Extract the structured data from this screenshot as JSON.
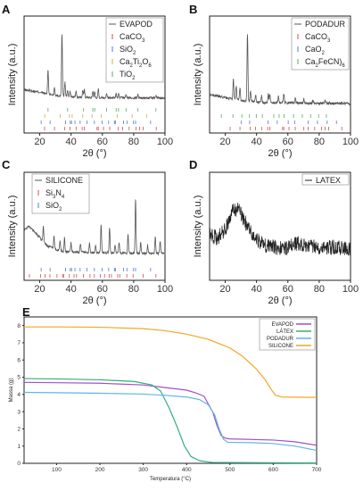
{
  "chart_data": [
    {
      "panel": "A",
      "type": "line",
      "xlabel": "2θ (°)",
      "ylabel": "Intensity (a.u.)",
      "xlim": [
        10,
        100
      ],
      "xticks": [
        20,
        40,
        60,
        80,
        100
      ],
      "legend_position": "top-right",
      "series": [
        {
          "name": "EVAPOD",
          "color": "#555555",
          "style": "line",
          "baseline": [
            [
              10,
              0.16
            ],
            [
              20,
              0.12
            ],
            [
              30,
              0.07
            ],
            [
              45,
              0.04
            ],
            [
              100,
              0.03
            ]
          ],
          "peaks": [
            [
              25.3,
              0.38
            ],
            [
              29.4,
              0.13
            ],
            [
              34.2,
              1.0
            ],
            [
              36.1,
              0.22
            ],
            [
              37.8,
              0.1
            ],
            [
              39.4,
              0.08
            ],
            [
              43.2,
              0.1
            ],
            [
              47.5,
              0.11
            ],
            [
              48.5,
              0.12
            ],
            [
              53.9,
              0.09
            ],
            [
              55.1,
              0.09
            ],
            [
              57.4,
              0.14
            ],
            [
              62.7,
              0.07
            ],
            [
              68.8,
              0.06
            ],
            [
              70.3,
              0.06
            ],
            [
              75.1,
              0.05
            ],
            [
              82.7,
              0.05
            ],
            [
              94.2,
              0.04
            ]
          ]
        },
        {
          "name": "CaCO3",
          "label_html": "CaCO<tspan baseline-shift='sub' font-size='6'>3</tspan>",
          "color": "#d94848",
          "style": "ticks",
          "positions": [
            23.1,
            29.4,
            36.0,
            39.4,
            43.2,
            47.1,
            48.5,
            56.6,
            57.4,
            60.7,
            64.7,
            70.2,
            72.9,
            77.1,
            81.5,
            83.8,
            86.0,
            94.4
          ]
        },
        {
          "name": "SiO2",
          "label_html": "SiO<tspan baseline-shift='sub' font-size='6'>2</tspan>",
          "color": "#4d7cc7",
          "style": "ticks",
          "positions": [
            20.9,
            26.6,
            36.5,
            39.5,
            40.3,
            42.5,
            45.8,
            50.1,
            54.9,
            59.9,
            64.0,
            67.7,
            68.3,
            73.5,
            75.7,
            79.9,
            81.2,
            90.8
          ]
        },
        {
          "name": "Ca2Ti2O6",
          "label_html": "Ca<tspan baseline-shift='sub' font-size='6'>2</tspan>Ti<tspan baseline-shift='sub' font-size='6'>2</tspan>O<tspan baseline-shift='sub' font-size='6'>6</tspan>",
          "color": "#d9a93d",
          "style": "ticks",
          "positions": [
            23.2,
            33.1,
            39.0,
            40.7,
            47.5,
            53.4,
            59.3,
            69.5,
            79.0,
            88.2
          ]
        },
        {
          "name": "TiO2",
          "label_html": "TiO<tspan baseline-shift='sub' font-size='6'>2</tspan>",
          "color": "#55a85f",
          "style": "ticks",
          "positions": [
            25.3,
            37.8,
            48.0,
            53.9,
            55.1,
            62.7,
            68.8,
            70.3,
            75.1,
            82.7,
            94.2
          ]
        }
      ]
    },
    {
      "panel": "B",
      "type": "line",
      "xlabel": "2θ (°)",
      "ylabel": "Intensity (a.u.)",
      "xlim": [
        10,
        100
      ],
      "xticks": [
        20,
        40,
        60,
        80,
        100
      ],
      "legend_position": "top-right",
      "series": [
        {
          "name": "PODADUR",
          "color": "#555555",
          "style": "line",
          "baseline": [
            [
              10,
              0.17
            ],
            [
              20,
              0.12
            ],
            [
              30,
              0.08
            ],
            [
              45,
              0.05
            ],
            [
              100,
              0.04
            ]
          ],
          "peaks": [
            [
              25.2,
              0.28
            ],
            [
              27.0,
              0.2
            ],
            [
              29.4,
              0.18
            ],
            [
              34.2,
              1.0
            ],
            [
              36.1,
              0.16
            ],
            [
              39.4,
              0.1
            ],
            [
              43.2,
              0.1
            ],
            [
              47.5,
              0.12
            ],
            [
              48.5,
              0.13
            ],
            [
              54.0,
              0.1
            ],
            [
              57.4,
              0.13
            ],
            [
              64.7,
              0.07
            ],
            [
              70.2,
              0.06
            ],
            [
              76.0,
              0.05
            ],
            [
              83.9,
              0.05
            ]
          ]
        },
        {
          "name": "CaCO3",
          "label_html": "CaCO<tspan baseline-shift='sub' font-size='6'>3</tspan>",
          "color": "#d94848",
          "style": "ticks",
          "positions": [
            23.1,
            29.4,
            36.0,
            39.4,
            43.2,
            47.1,
            48.5,
            56.6,
            57.4,
            60.7,
            64.7,
            70.2,
            72.9,
            77.1,
            81.5,
            83.8,
            86.0,
            94.4
          ]
        },
        {
          "name": "CaO2",
          "label_html": "CaO<tspan baseline-shift='sub' font-size='6'>2</tspan>",
          "color": "#4d7cc7",
          "style": "ticks",
          "positions": [
            30.1,
            35.6,
            47.3,
            53.2,
            60.2,
            64.3,
            73.0,
            78.9,
            85.1,
            91.0
          ]
        },
        {
          "name": "Ca2FeCN6",
          "label_html": "Ca<tspan baseline-shift='sub' font-size='6'>2</tspan>FeCN)<tspan baseline-shift='sub' font-size='6'>6</tspan>",
          "color": "#55a85f",
          "style": "ticks",
          "positions": [
            17.5,
            24.9,
            30.6,
            35.5,
            39.8,
            43.7,
            51.0,
            54.4,
            57.6,
            63.6,
            69.2,
            74.5,
            79.6,
            84.6
          ]
        }
      ]
    },
    {
      "panel": "C",
      "type": "line",
      "xlabel": "2θ (°)",
      "ylabel": "Intensity (a.u.)",
      "xlim": [
        10,
        100
      ],
      "xticks": [
        20,
        40,
        60,
        80,
        100
      ],
      "legend_position": "top-left",
      "series": [
        {
          "name": "SILICONE",
          "color": "#555555",
          "style": "line",
          "baseline": [
            [
              10,
              0.44
            ],
            [
              13,
              0.5
            ],
            [
              18,
              0.38
            ],
            [
              25,
              0.2
            ],
            [
              35,
              0.12
            ],
            [
              50,
              0.11
            ],
            [
              70,
              0.1
            ],
            [
              100,
              0.09
            ]
          ],
          "peaks": [
            [
              22.3,
              0.22
            ],
            [
              29.1,
              0.18
            ],
            [
              33.0,
              0.15
            ],
            [
              35.8,
              0.2
            ],
            [
              40.0,
              0.14
            ],
            [
              46.0,
              0.12
            ],
            [
              51.8,
              0.14
            ],
            [
              55.7,
              0.12
            ],
            [
              59.2,
              0.42
            ],
            [
              64.6,
              0.38
            ],
            [
              68.1,
              0.12
            ],
            [
              70.7,
              0.16
            ],
            [
              76.4,
              0.28
            ],
            [
              81.2,
              0.82
            ],
            [
              84.5,
              0.16
            ],
            [
              88.9,
              0.12
            ],
            [
              93.8,
              0.26
            ],
            [
              96.9,
              0.18
            ]
          ]
        },
        {
          "name": "Si3N4",
          "label_html": "Si<tspan baseline-shift='sub' font-size='6'>3</tspan>N<tspan baseline-shift='sub' font-size='6'>4</tspan>",
          "color": "#d94848",
          "style": "ticks",
          "positions": [
            13.4,
            20.6,
            23.4,
            26.5,
            31.0,
            34.6,
            35.3,
            38.9,
            41.9,
            43.5,
            47.9,
            52.1,
            54.9,
            58.7,
            61.4,
            64.4,
            65.8,
            69.8,
            71.1,
            75.6,
            79.6,
            86.1,
            94.2
          ]
        },
        {
          "name": "SiO2",
          "label_html": "SiO<tspan baseline-shift='sub' font-size='6'>2</tspan>",
          "color": "#4d7cc7",
          "style": "ticks",
          "positions": [
            20.9,
            26.6,
            36.5,
            39.5,
            40.3,
            42.5,
            45.8,
            50.1,
            54.9,
            59.9,
            64.0,
            67.7,
            68.3,
            73.5,
            75.7,
            79.9,
            81.2,
            90.8
          ]
        }
      ]
    },
    {
      "panel": "D",
      "type": "line",
      "xlabel": "2θ (°)",
      "ylabel": "Intensity (a.u.)",
      "xlim": [
        10,
        100
      ],
      "xticks": [
        20,
        40,
        60,
        80,
        100
      ],
      "legend_position": "top-right",
      "series": [
        {
          "name": "LATEX",
          "color": "#222222",
          "style": "line",
          "baseline": [
            [
              10,
              0.5
            ],
            [
              15,
              0.44
            ],
            [
              20,
              0.55
            ],
            [
              25,
              0.78
            ],
            [
              28,
              0.8
            ],
            [
              32,
              0.66
            ],
            [
              38,
              0.46
            ],
            [
              45,
              0.36
            ],
            [
              55,
              0.32
            ],
            [
              60,
              0.33
            ],
            [
              66,
              0.38
            ],
            [
              72,
              0.36
            ],
            [
              80,
              0.34
            ],
            [
              90,
              0.33
            ],
            [
              100,
              0.32
            ]
          ],
          "peaks": []
        }
      ]
    },
    {
      "panel": "E",
      "type": "line",
      "xlabel": "Temperatura (°C)",
      "ylabel": "Massa (g)",
      "xlim": [
        25,
        700
      ],
      "ylim": [
        0,
        8.5
      ],
      "xticks": [
        100,
        200,
        300,
        400,
        500,
        600,
        700
      ],
      "yticks": [
        0,
        1,
        2,
        3,
        4,
        5,
        6,
        7,
        8
      ],
      "legend_position": "top-right",
      "series": [
        {
          "name": "EVAPOD",
          "color": "#a34fc7",
          "points": [
            [
              25,
              4.7
            ],
            [
              100,
              4.68
            ],
            [
              200,
              4.65
            ],
            [
              300,
              4.55
            ],
            [
              350,
              4.4
            ],
            [
              400,
              4.25
            ],
            [
              420,
              4.1
            ],
            [
              440,
              3.9
            ],
            [
              460,
              3.0
            ],
            [
              470,
              2.2
            ],
            [
              480,
              1.6
            ],
            [
              490,
              1.45
            ],
            [
              500,
              1.42
            ],
            [
              600,
              1.35
            ],
            [
              650,
              1.25
            ],
            [
              700,
              1.05
            ]
          ]
        },
        {
          "name": "LÁTEX",
          "color": "#2fae7e",
          "points": [
            [
              25,
              4.92
            ],
            [
              100,
              4.9
            ],
            [
              200,
              4.85
            ],
            [
              280,
              4.75
            ],
            [
              320,
              4.55
            ],
            [
              340,
              4.2
            ],
            [
              360,
              3.2
            ],
            [
              380,
              2.0
            ],
            [
              395,
              1.0
            ],
            [
              410,
              0.4
            ],
            [
              430,
              0.15
            ],
            [
              460,
              0.05
            ],
            [
              700,
              0.02
            ]
          ]
        },
        {
          "name": "PODADUR",
          "color": "#5eb6e0",
          "points": [
            [
              25,
              4.12
            ],
            [
              100,
              4.1
            ],
            [
              200,
              4.07
            ],
            [
              300,
              4.02
            ],
            [
              350,
              3.95
            ],
            [
              400,
              3.85
            ],
            [
              430,
              3.7
            ],
            [
              450,
              3.4
            ],
            [
              465,
              2.8
            ],
            [
              475,
              2.0
            ],
            [
              485,
              1.4
            ],
            [
              495,
              1.22
            ],
            [
              550,
              1.2
            ],
            [
              600,
              1.15
            ],
            [
              650,
              1.0
            ],
            [
              700,
              0.75
            ]
          ]
        },
        {
          "name": "SILICONE",
          "color": "#f2a623",
          "points": [
            [
              25,
              7.92
            ],
            [
              100,
              7.92
            ],
            [
              200,
              7.9
            ],
            [
              300,
              7.82
            ],
            [
              350,
              7.7
            ],
            [
              400,
              7.5
            ],
            [
              450,
              7.2
            ],
            [
              500,
              6.7
            ],
            [
              530,
              6.2
            ],
            [
              560,
              5.5
            ],
            [
              580,
              4.9
            ],
            [
              595,
              4.3
            ],
            [
              605,
              3.95
            ],
            [
              620,
              3.85
            ],
            [
              700,
              3.83
            ]
          ]
        }
      ]
    }
  ]
}
